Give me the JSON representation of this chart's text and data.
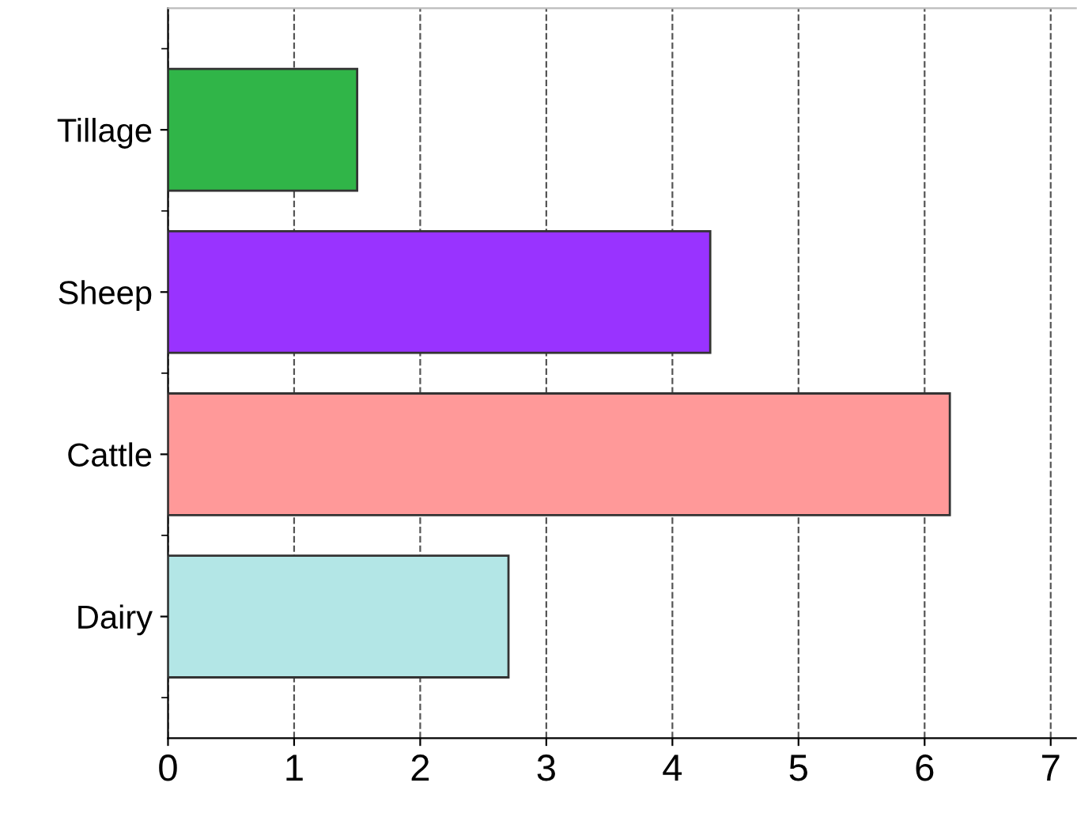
{
  "chart_data": {
    "type": "bar",
    "orientation": "horizontal",
    "categories": [
      "Tillage",
      "Sheep",
      "Cattle",
      "Dairy"
    ],
    "values": [
      1.5,
      4.3,
      6.2,
      2.7
    ],
    "colors": [
      "#30b548",
      "#9933ff",
      "#ff9999",
      "#b3e6e6"
    ],
    "xlim": [
      0,
      7.2
    ],
    "xticks": [
      0,
      1,
      2,
      3,
      4,
      5,
      6,
      7
    ],
    "grid": "x"
  }
}
